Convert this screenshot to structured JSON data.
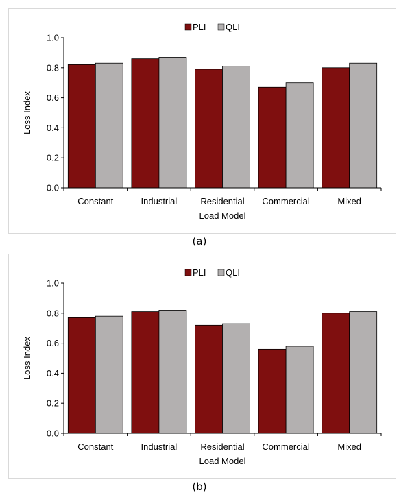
{
  "colors": {
    "PLI": "#7f0f0f",
    "QLI": "#b3b0b0"
  },
  "chart_data": [
    {
      "type": "bar",
      "caption": "(a)",
      "categories": [
        "Constant",
        "Industrial",
        "Residential",
        "Commercial",
        "Mixed"
      ],
      "series": [
        {
          "name": "PLI",
          "values": [
            0.82,
            0.86,
            0.79,
            0.67,
            0.8
          ]
        },
        {
          "name": "QLI",
          "values": [
            0.83,
            0.87,
            0.81,
            0.7,
            0.83
          ]
        }
      ],
      "xlabel": "Load Model",
      "ylabel": "Loss Index",
      "ylim": [
        0,
        1.0
      ],
      "yticks": [
        "0.0",
        "0.2",
        "0.4",
        "0.6",
        "0.8",
        "1.0"
      ],
      "legend": "top-center",
      "grid": false
    },
    {
      "type": "bar",
      "caption": "(b)",
      "categories": [
        "Constant",
        "Industrial",
        "Residential",
        "Commercial",
        "Mixed"
      ],
      "series": [
        {
          "name": "PLI",
          "values": [
            0.77,
            0.81,
            0.72,
            0.56,
            0.8
          ]
        },
        {
          "name": "QLI",
          "values": [
            0.78,
            0.82,
            0.73,
            0.58,
            0.81
          ]
        }
      ],
      "xlabel": "Load Model",
      "ylabel": "Loss Index",
      "ylim": [
        0,
        1.0
      ],
      "yticks": [
        "0.0",
        "0.2",
        "0.4",
        "0.6",
        "0.8",
        "1.0"
      ],
      "legend": "top-center",
      "grid": false
    }
  ]
}
